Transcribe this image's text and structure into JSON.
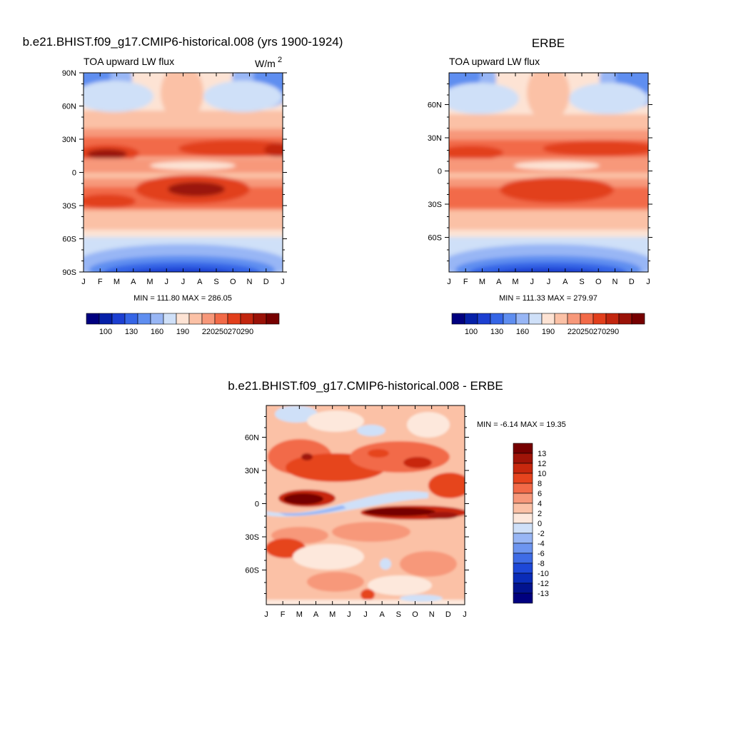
{
  "chart_data": [
    {
      "type": "heatmap",
      "title": "b.e21.BHIST.f09_g17.CMIP6-historical.008 (yrs 1900-1924)",
      "subtitle_left": "TOA upward LW flux",
      "units_label": "W/m",
      "units_sup": "2",
      "x_ticks": [
        "J",
        "F",
        "M",
        "A",
        "M",
        "J",
        "J",
        "A",
        "S",
        "O",
        "N",
        "D",
        "J"
      ],
      "y_ticks": [
        "90N",
        "60N",
        "30N",
        "0",
        "30S",
        "60S",
        "90S"
      ],
      "stats": "MIN = 111.80 MAX = 286.05",
      "colorbar_labels": [
        "100",
        "130",
        "160",
        "190",
        "220",
        "250",
        "270",
        "290"
      ],
      "colors": [
        "#00007f",
        "#0520a8",
        "#1c3fd1",
        "#3565e6",
        "#5f8ef0",
        "#98b6f5",
        "#cfe0f8",
        "#fde3d4",
        "#fbc1a6",
        "#f7987a",
        "#f26a48",
        "#e23f1c",
        "#c2260f",
        "#9a1208",
        "#760000"
      ]
    },
    {
      "type": "heatmap",
      "title": "ERBE",
      "subtitle_left": "TOA upward LW flux",
      "x_ticks": [
        "J",
        "F",
        "M",
        "A",
        "M",
        "J",
        "J",
        "A",
        "S",
        "O",
        "N",
        "D",
        "J"
      ],
      "y_ticks": [
        "60N",
        "30N",
        "0",
        "30S",
        "60S"
      ],
      "stats": "MIN = 111.33 MAX = 279.97",
      "colorbar_labels": [
        "100",
        "130",
        "160",
        "190",
        "220",
        "250",
        "270",
        "290"
      ]
    },
    {
      "type": "heatmap",
      "title": "b.e21.BHIST.f09_g17.CMIP6-historical.008 - ERBE",
      "x_ticks": [
        "J",
        "F",
        "M",
        "A",
        "M",
        "J",
        "J",
        "A",
        "S",
        "O",
        "N",
        "D",
        "J"
      ],
      "y_ticks": [
        "60N",
        "30N",
        "0",
        "30S",
        "60S"
      ],
      "stats": "MIN =  -6.14 MAX =  19.35",
      "colorbar_labels": [
        "13",
        "12",
        "10",
        "8",
        "6",
        "4",
        "2",
        "0",
        "-2",
        "-4",
        "-6",
        "-8",
        "-10",
        "-12",
        "-13"
      ],
      "colors": [
        "#760000",
        "#a01408",
        "#c8280e",
        "#e6441e",
        "#f26a48",
        "#f7987a",
        "#fbc1a6",
        "#fde8dc",
        "#cfe0f8",
        "#98b6f5",
        "#6d95f0",
        "#3f6ce6",
        "#1e48d8",
        "#0a2cb8",
        "#02138f",
        "#00007f"
      ]
    }
  ]
}
